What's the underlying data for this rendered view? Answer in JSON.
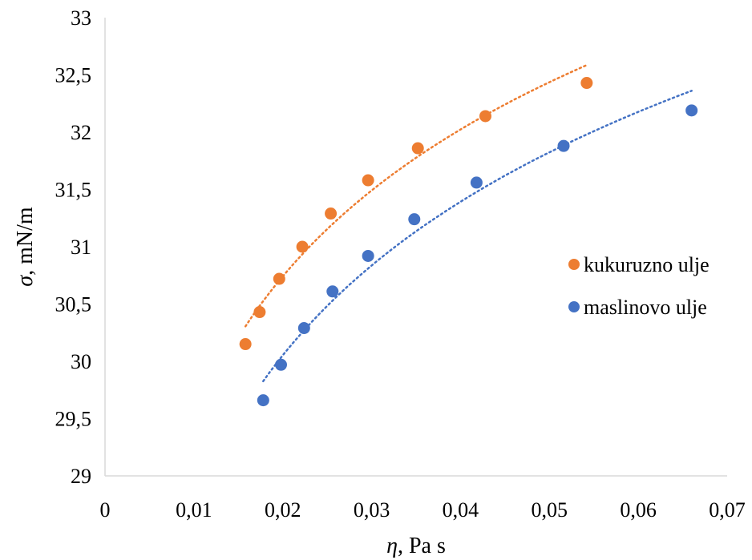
{
  "chart_data": {
    "type": "scatter",
    "title": "",
    "xlabel": {
      "symbol": "η",
      "unit": ", Pa s"
    },
    "ylabel": {
      "symbol": "σ",
      "unit": ", mN/m"
    },
    "xlim": [
      0,
      0.07
    ],
    "ylim": [
      29,
      33
    ],
    "x_ticks": [
      0,
      0.01,
      0.02,
      0.03,
      0.04,
      0.05,
      0.06,
      0.07
    ],
    "x_tick_labels": [
      "0",
      "0,01",
      "0,02",
      "0,03",
      "0,04",
      "0,05",
      "0,06",
      "0,07"
    ],
    "y_ticks": [
      29,
      29.5,
      30,
      30.5,
      31,
      31.5,
      32,
      32.5,
      33
    ],
    "y_tick_labels": [
      "29",
      "29,5",
      "30",
      "30,5",
      "31",
      "31,5",
      "32",
      "32,5",
      "33"
    ],
    "grid": false,
    "legend_position": "right",
    "trendline": "logarithmic, dotted",
    "series": [
      {
        "name": "kukuruzno ulje",
        "color": "#ED7D31",
        "x": [
          0.0158,
          0.0174,
          0.0196,
          0.0222,
          0.0254,
          0.0296,
          0.0352,
          0.0428,
          0.0542
        ],
        "y": [
          30.15,
          30.43,
          30.72,
          31.0,
          31.29,
          31.58,
          31.86,
          32.14,
          32.43
        ]
      },
      {
        "name": "maslinovo ulje",
        "color": "#4472C4",
        "x": [
          0.0178,
          0.0198,
          0.0224,
          0.0256,
          0.0296,
          0.0348,
          0.0418,
          0.0516,
          0.066
        ],
        "y": [
          29.66,
          29.97,
          30.29,
          30.61,
          30.92,
          31.24,
          31.56,
          31.88,
          32.19
        ]
      }
    ]
  }
}
